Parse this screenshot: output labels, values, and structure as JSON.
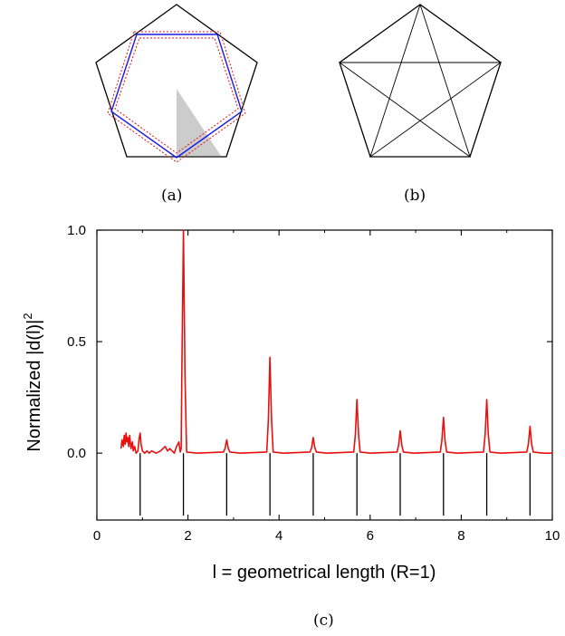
{
  "figure": {
    "panel_a_label": "(a)",
    "panel_b_label": "(b)",
    "panel_c_label": "(c)"
  },
  "colors": {
    "axes": "#000000",
    "spectrum": "#e8100f",
    "orbit_blue": "#1a1ae6",
    "orbit_red_dashed": "#e8100f",
    "shaded_region": "#cccccc"
  },
  "chart_data": {
    "type": "line",
    "xlabel": "l = geometrical length (R=1)",
    "ylabel": "Normalized |d(l)|",
    "ylabel_superscript": "2",
    "xlim": [
      0,
      10
    ],
    "ylim": [
      -0.3,
      1.0
    ],
    "xticks": [
      0,
      2,
      4,
      6,
      8,
      10
    ],
    "xtick_labels": [
      "0",
      "2",
      "4",
      "6",
      "8",
      "10"
    ],
    "yticks": [
      0.0,
      0.5,
      1.0
    ],
    "ytick_labels": [
      "0.0",
      "0.5",
      "1.0"
    ],
    "grid": false,
    "baseline_noise": {
      "x": [
        0.53,
        0.55,
        0.58,
        0.6,
        0.62,
        0.64,
        0.66,
        0.68,
        0.7,
        0.72,
        0.75,
        0.78,
        0.8,
        0.83,
        0.86,
        0.9,
        0.93,
        0.95,
        0.97,
        1.0,
        1.05,
        1.1,
        1.15,
        1.2,
        1.3,
        1.4,
        1.45,
        1.5,
        1.55,
        1.6,
        1.7,
        1.75,
        1.8,
        1.85
      ],
      "y": [
        0.02,
        0.06,
        0.03,
        0.08,
        0.04,
        0.09,
        0.05,
        0.07,
        0.03,
        0.08,
        0.02,
        0.05,
        0.01,
        0.03,
        0.0,
        0.01,
        0.07,
        0.09,
        0.04,
        0.01,
        0.0,
        0.01,
        0.0,
        0.01,
        0.0,
        0.01,
        0.02,
        0.03,
        0.01,
        0.02,
        0.0,
        0.03,
        0.05,
        0.02
      ]
    },
    "peaks": [
      {
        "x": 1.9,
        "y": 1.0
      },
      {
        "x": 2.85,
        "y": 0.06
      },
      {
        "x": 3.8,
        "y": 0.43
      },
      {
        "x": 4.75,
        "y": 0.07
      },
      {
        "x": 5.71,
        "y": 0.24
      },
      {
        "x": 6.66,
        "y": 0.1
      },
      {
        "x": 7.61,
        "y": 0.16
      },
      {
        "x": 8.56,
        "y": 0.24
      },
      {
        "x": 9.51,
        "y": 0.12
      }
    ],
    "reference_lengths": [
      0.95,
      1.9,
      2.85,
      3.8,
      4.75,
      5.71,
      6.66,
      7.61,
      8.56,
      9.51
    ],
    "reference_line_bottom": -0.28
  }
}
